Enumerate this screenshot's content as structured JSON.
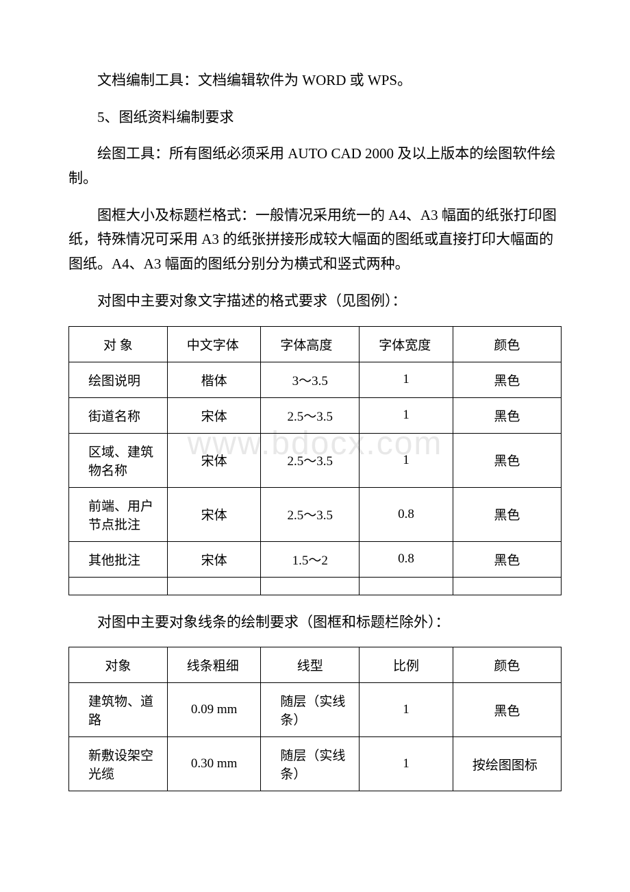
{
  "paragraphs": {
    "p1": "文档编制工具：文档编辑软件为 WORD 或 WPS。",
    "p2": "5、图纸资料编制要求",
    "p3": "绘图工具：所有图纸必须采用 AUTO CAD 2000 及以上版本的绘图软件绘制。",
    "p4": "图框大小及标题栏格式：一般情况采用统一的 A4、A3 幅面的纸张打印图纸，特殊情况可采用 A3 的纸张拼接形成较大幅面的图纸或直接打印大幅面的图纸。A4、A3 幅面的图纸分别分为横式和竖式两种。",
    "p5": "对图中主要对象文字描述的格式要求（见图例）：",
    "p6": "对图中主要对象线条的绘制要求（图框和标题栏除外）："
  },
  "watermark": "www.bdocx.com",
  "table1": {
    "headers": {
      "h1": "对 象",
      "h2": "中文字体",
      "h3": "字体高度",
      "h4": "字体宽度",
      "h5": "颜色"
    },
    "rows": [
      {
        "c1": "绘图说明",
        "c2": "楷体",
        "c3": "3～3.5",
        "c4": "1",
        "c5": "黑色"
      },
      {
        "c1": "街道名称",
        "c2": "宋体",
        "c3": "2.5～3.5",
        "c4": "1",
        "c5": "黑色"
      },
      {
        "c1": "区域、建筑物名称",
        "c2": "宋体",
        "c3": "2.5～3.5",
        "c4": "1",
        "c5": "黑色"
      },
      {
        "c1": "前端、用户节点批注",
        "c2": "宋体",
        "c3": "2.5～3.5",
        "c4": "0.8",
        "c5": "黑色"
      },
      {
        "c1": "其他批注",
        "c2": "宋体",
        "c3": "1.5～2",
        "c4": "0.8",
        "c5": "黑色"
      }
    ]
  },
  "table2": {
    "headers": {
      "h1": "对象",
      "h2": "线条粗细",
      "h3": "线型",
      "h4": "比例",
      "h5": "颜色"
    },
    "rows": [
      {
        "c1": "建筑物、道路",
        "c2": "0.09 mm",
        "c3": "随层（实线条）",
        "c4": "1",
        "c5": "黑色"
      },
      {
        "c1": "新敷设架空光缆",
        "c2": "0.30 mm",
        "c3": "随层（实线条）",
        "c4": "1",
        "c5": "按绘图图标"
      }
    ]
  }
}
